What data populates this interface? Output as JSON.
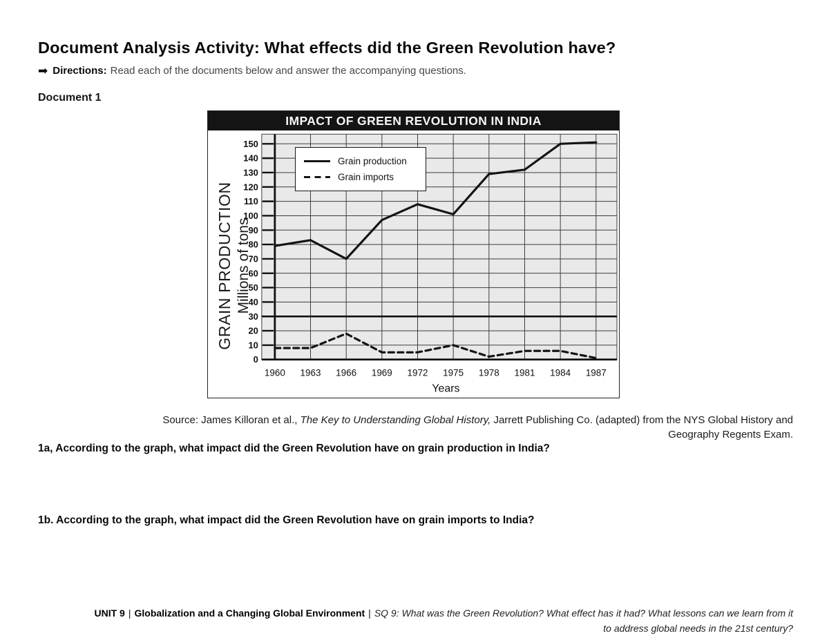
{
  "page": {
    "title": "Document Analysis Activity: What effects did the Green Revolution have?",
    "directions_arrow": "➡",
    "directions_label": "Directions:",
    "directions_text": "Read each of the documents below and answer the accompanying questions."
  },
  "document1": {
    "label": "Document 1",
    "source": {
      "line1_prefix": "Source: James Killoran et al., ",
      "line1_title": "The Key to Understanding Global History,",
      "line1_suffix": " Jarrett Publishing Co. (adapted) from the NYS Global History and",
      "line2": "Geography Regents Exam."
    }
  },
  "questions": {
    "q1a": "1a, According to the graph, what impact did the Green Revolution have on grain production in India?",
    "q1b": "1b. According to the graph, what impact did the Green Revolution have on grain imports to India?"
  },
  "footer": {
    "unit_label": "UNIT 9",
    "separator1": "|",
    "unit_title": "Globalization and a Changing Global Environment",
    "separator2": "|",
    "sq_line1": "SQ 9: What was the Green Revolution? What effect has it had? What lessons can we learn from it",
    "sq_line2": "to address global needs in the 21st century?"
  },
  "chart_data": {
    "type": "line",
    "title": "IMPACT OF GREEN REVOLUTION IN INDIA",
    "xlabel": "Years",
    "ylabel_line1": "GRAIN PRODUCTION",
    "ylabel_line2": "Millions of tons",
    "categories": [
      "1960",
      "1963",
      "1966",
      "1969",
      "1972",
      "1975",
      "1978",
      "1981",
      "1984",
      "1987"
    ],
    "ylim": [
      0,
      150
    ],
    "y_tick_step": 10,
    "series": [
      {
        "name": "Grain production",
        "style": "solid",
        "values": [
          79,
          83,
          70,
          97,
          108,
          101,
          129,
          132,
          150,
          151
        ]
      },
      {
        "name": "Grain imports",
        "style": "dashed",
        "values": [
          8,
          8,
          18,
          5,
          5,
          10,
          2,
          6,
          6,
          1
        ]
      }
    ],
    "grid": true,
    "legend_position": "upper-left",
    "emphasized_gridline_value": 30,
    "line_color": "#141414",
    "plot_bg": "#e9e9e9"
  }
}
